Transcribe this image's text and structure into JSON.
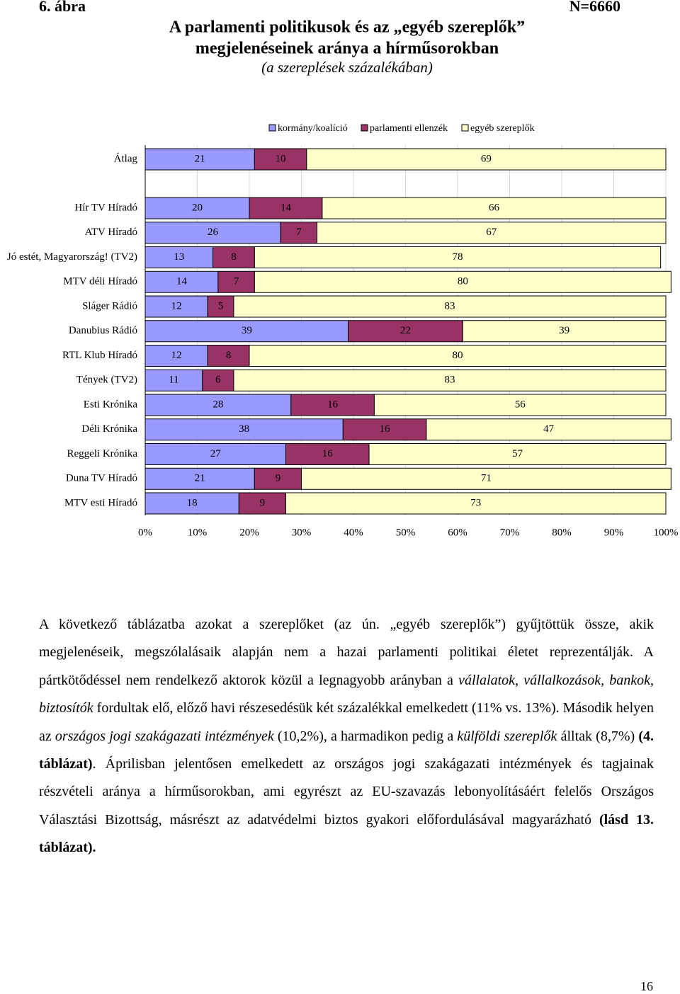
{
  "figure_label": "6. ábra",
  "n_label": "N=6660",
  "chart_data": {
    "type": "stacked-barh",
    "title": [
      "A parlamenti politikusok és az „egyéb szereplők”",
      "megjelenéseinek aránya a hírműsorokban"
    ],
    "subtitle": "(a szereplések százalékában)",
    "categories": [
      "Átlag",
      "Hír TV Híradó",
      "ATV Híradó",
      "Jó estét, Magyarország! (TV2)",
      "MTV déli Híradó",
      "Sláger Rádió",
      "Danubius Rádió",
      "RTL Klub Híradó",
      "Tények (TV2)",
      "Esti Krónika",
      "Déli Krónika",
      "Reggeli Krónika",
      "Duna TV Híradó",
      "MTV esti Híradó"
    ],
    "series": [
      {
        "name": "kormány/koalíció",
        "color": "#9999ff",
        "values": [
          21,
          20,
          26,
          13,
          14,
          12,
          39,
          12,
          11,
          28,
          38,
          27,
          21,
          18
        ]
      },
      {
        "name": "parlamenti ellenzék",
        "color": "#993366",
        "values": [
          10,
          14,
          7,
          8,
          7,
          5,
          22,
          8,
          6,
          16,
          16,
          16,
          9,
          9
        ]
      },
      {
        "name": "egyéb szereplők",
        "color": "#ffffcc",
        "values": [
          69,
          66,
          67,
          78,
          80,
          83,
          39,
          80,
          83,
          56,
          47,
          57,
          71,
          73
        ]
      }
    ],
    "xlim": [
      0,
      100
    ],
    "xticks": [
      {
        "value": 0,
        "label": "0%"
      },
      {
        "value": 10,
        "label": "10%"
      },
      {
        "value": 20,
        "label": "20%"
      },
      {
        "value": 30,
        "label": "30%"
      },
      {
        "value": 40,
        "label": "40%"
      },
      {
        "value": 50,
        "label": "50%"
      },
      {
        "value": 60,
        "label": "60%"
      },
      {
        "value": 70,
        "label": "70%"
      },
      {
        "value": 80,
        "label": "80%"
      },
      {
        "value": 90,
        "label": "90%"
      },
      {
        "value": 100,
        "label": "100%"
      }
    ],
    "grid": true
  },
  "paragraph": [
    "A következő táblázatba azokat a szereplőket (az ún. „egyéb szereplők”) gyűjtöttük össze, akik megjelenéseik, megszólalásaik alapján nem a hazai parlamenti politikai életet reprezentálják. A pártkötődéssel nem rendelkező aktorok közül a legnagyobb arányban a ",
    "vállalatok, vállalkozások, bankok, biztosítók",
    " fordultak elő, előző havi részesedésük két százalékkal emelkedett (11% vs. 13%). Második helyen az ",
    "országos jogi szakágazati intézmények",
    " (10,2%), a harmadikon pedig a ",
    "külföldi szereplők",
    " álltak (8,7%) ",
    "(4. táblázat)",
    ". Áprilisban jelentősen emelkedett az országos jogi szakágazati intézmények és tagjainak részvételi aránya a hírműsorokban, ami egyrészt az EU-szavazás lebonyolításáért felelős Országos Választási Bizottság, másrészt az adatvédelmi biztos gyakori előfordulásával magyarázható ",
    "(lásd 13. táblázat)."
  ],
  "page_number": "16"
}
